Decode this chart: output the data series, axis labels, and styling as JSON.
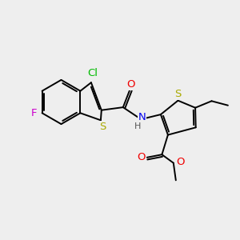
{
  "bg_color": "#eeeeee",
  "bond_color": "#000000",
  "bond_width": 1.4,
  "atoms": {
    "Cl": {
      "color": "#00bb00",
      "fontsize": 9.5
    },
    "F": {
      "color": "#cc00cc",
      "fontsize": 9.5
    },
    "S": {
      "color": "#aaaa00",
      "fontsize": 9.5
    },
    "N": {
      "color": "#0000ee",
      "fontsize": 9.5
    },
    "O": {
      "color": "#ee0000",
      "fontsize": 9.5
    },
    "H": {
      "color": "#444444",
      "fontsize": 8.0
    }
  },
  "figsize": [
    3.0,
    3.0
  ],
  "dpi": 100,
  "xlim": [
    0,
    10
  ],
  "ylim": [
    0,
    10
  ]
}
